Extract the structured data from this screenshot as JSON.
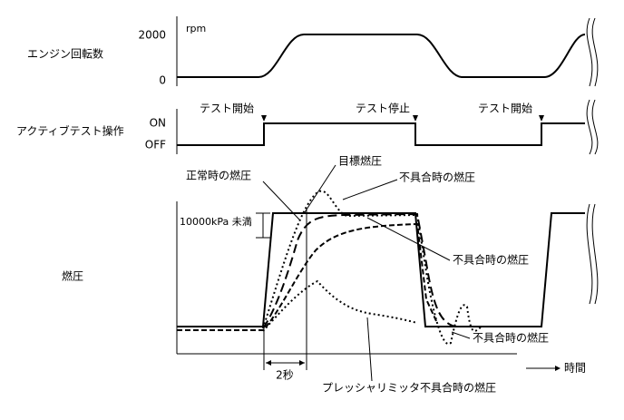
{
  "rows": [
    "エンジン回転数",
    "アクティブテスト操作",
    "燃圧"
  ],
  "engine_axis": {
    "unit": "rpm",
    "high": "2000",
    "low": "0"
  },
  "test_axis": {
    "on": "ON",
    "off": "OFF"
  },
  "events": [
    "テスト開始",
    "テスト停止",
    "テスト開始"
  ],
  "annotations": {
    "normal": "正常時の燃圧",
    "target": "目標燃圧",
    "faults": [
      "不具合時の燃圧",
      "不具合時の燃圧",
      "不具合時の燃圧"
    ],
    "pressure_note": "10000kPa 未満",
    "duration": "2秒",
    "limiter": "プレッシャリミッタ不具合時の燃圧"
  },
  "time_label": "時間"
}
